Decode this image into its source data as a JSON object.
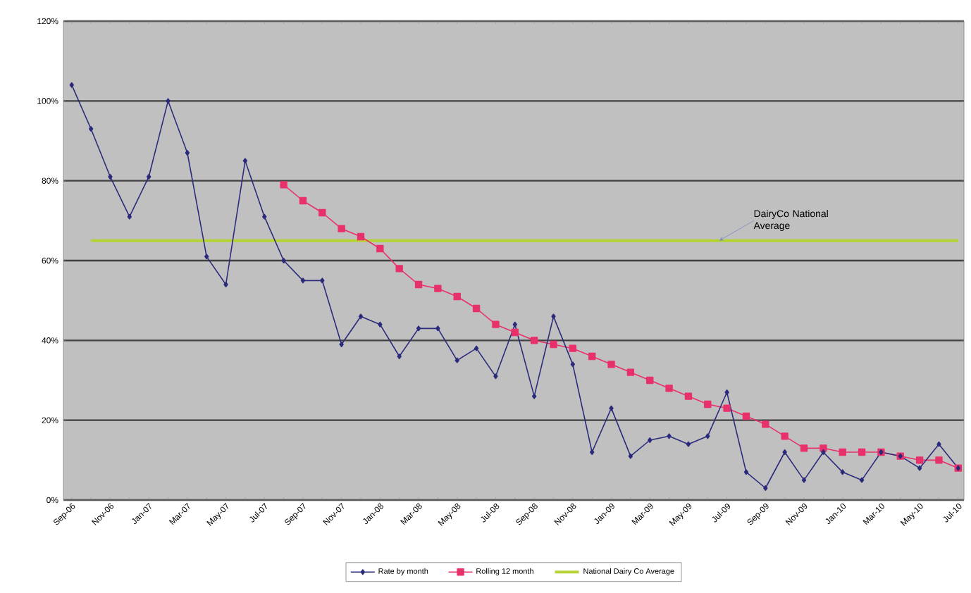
{
  "chart_data": {
    "type": "line",
    "categories": [
      "Sep-06",
      null,
      "Nov-06",
      null,
      "Jan-07",
      null,
      "Mar-07",
      null,
      "May-07",
      null,
      "Jul-07",
      null,
      "Sep-07",
      null,
      "Nov-07",
      null,
      "Jan-08",
      null,
      "Mar-08",
      null,
      "May-08",
      null,
      "Jul-08",
      null,
      "Sep-08",
      null,
      "Nov-08",
      null,
      "Jan-09",
      null,
      "Mar-09",
      null,
      "May-09",
      null,
      "Jul-09",
      null,
      "Sep-09",
      null,
      "Nov-09",
      null,
      "Jan-10",
      null,
      "Mar-10",
      null,
      "May-10",
      null,
      "Jul-10"
    ],
    "series": [
      {
        "name": "Rate by month",
        "color": "#2b2b7c",
        "marker": "diamond",
        "values": [
          104,
          93,
          81,
          71,
          81,
          100,
          87,
          61,
          54,
          85,
          71,
          60,
          55,
          55,
          39,
          46,
          44,
          36,
          43,
          43,
          35,
          38,
          31,
          44,
          26,
          46,
          34,
          12,
          23,
          11,
          15,
          16,
          14,
          16,
          27,
          7,
          3,
          12,
          5,
          12,
          7,
          5,
          12,
          11,
          8,
          14,
          8
        ]
      },
      {
        "name": "Rolling 12 month",
        "color": "#e8306a",
        "marker": "square",
        "values": [
          null,
          null,
          null,
          null,
          null,
          null,
          null,
          null,
          null,
          null,
          null,
          79,
          75,
          72,
          68,
          66,
          63,
          58,
          54,
          53,
          51,
          48,
          44,
          42,
          40,
          39,
          38,
          36,
          34,
          32,
          30,
          28,
          26,
          24,
          23,
          21,
          19,
          16,
          13,
          13,
          12,
          12,
          12,
          11,
          10,
          10,
          8
        ]
      },
      {
        "name": "National Dairy Co Average",
        "color": "#b5d334",
        "marker": "none",
        "values": [
          null,
          65,
          65,
          65,
          65,
          65,
          65,
          65,
          65,
          65,
          65,
          65,
          65,
          65,
          65,
          65,
          65,
          65,
          65,
          65,
          65,
          65,
          65,
          65,
          65,
          65,
          65,
          65,
          65,
          65,
          65,
          65,
          65,
          65,
          65,
          65,
          65,
          65,
          65,
          65,
          65,
          65,
          65,
          65,
          65,
          65,
          65
        ]
      }
    ],
    "ylim": [
      0,
      120
    ],
    "yticks": [
      {
        "value": 0,
        "label": "0%"
      },
      {
        "value": 20,
        "label": "20%"
      },
      {
        "value": 40,
        "label": "40%"
      },
      {
        "value": 60,
        "label": "60%"
      },
      {
        "value": 80,
        "label": "80%"
      },
      {
        "value": 100,
        "label": "100%"
      },
      {
        "value": 120,
        "label": "120%"
      }
    ],
    "grid": "y",
    "legend": "bottom",
    "annotations": [
      {
        "text": "DairyCo National Average",
        "y": 65
      }
    ]
  }
}
